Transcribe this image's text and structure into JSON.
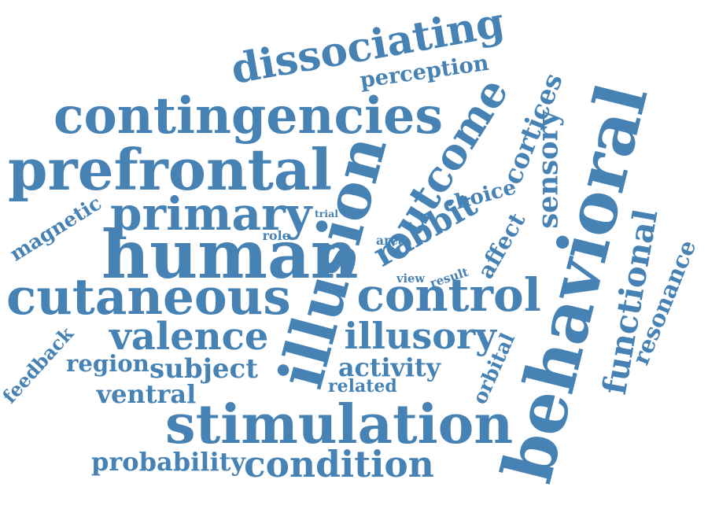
{
  "style": {
    "word_color": "#4682b4",
    "background": "#ffffff"
  },
  "words": [
    "dissociating",
    "perception",
    "contingencies",
    "prefrontal",
    "primary",
    "magnetic",
    "trial",
    "role",
    "human",
    "cutaneous",
    "valence",
    "feedback",
    "region",
    "subject",
    "ventral",
    "stimulation",
    "probability",
    "condition",
    "illusion",
    "outcome",
    "rabbit",
    "area",
    "view",
    "result",
    "control",
    "illusory",
    "activity",
    "related",
    "choice",
    "affect",
    "cortices",
    "sensory",
    "orbital",
    "behavioral",
    "functional",
    "resonance"
  ]
}
